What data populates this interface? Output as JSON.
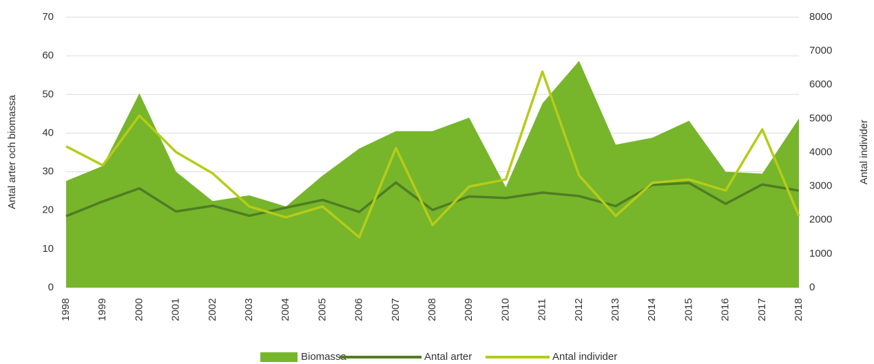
{
  "chart_data": {
    "type": "area_line",
    "categories": [
      "1998",
      "1999",
      "2000",
      "2001",
      "2002",
      "2003",
      "2004",
      "2005",
      "2006",
      "2007",
      "2008",
      "2009",
      "2010",
      "2011",
      "2012",
      "2013",
      "2014",
      "2015",
      "2016",
      "2017",
      "2018"
    ],
    "series": [
      {
        "name": "Biomassa",
        "color": "#77b52b",
        "type": "area",
        "values": [
          27.6,
          31.5,
          50.3,
          30,
          22.4,
          23.9,
          21,
          29,
          36,
          40.5,
          40.5,
          44,
          26,
          47.7,
          58.7,
          37,
          38.8,
          43.2,
          30,
          29.5,
          43.8
        ]
      },
      {
        "name": "Antal arter",
        "color": "#4f7d23",
        "type": "line",
        "values": [
          18.5,
          22.3,
          25.7,
          19.7,
          21.2,
          18.6,
          20.7,
          22.7,
          19.6,
          27.2,
          20.1,
          23.6,
          23.2,
          24.6,
          23.7,
          21.1,
          26.6,
          27.1,
          21.7,
          26.7,
          25.1
        ]
      },
      {
        "name": "Antal individer",
        "color": "#b5cc18",
        "type": "line",
        "axis": "y2",
        "values": [
          4180,
          3620,
          5090,
          4010,
          3380,
          2400,
          2080,
          2400,
          1490,
          4130,
          1850,
          2990,
          3200,
          6390,
          3320,
          2120,
          3100,
          3200,
          2870,
          4680,
          2120
        ]
      }
    ],
    "ylabel": "Antal arter och biomassa",
    "y2label": "Antal individer",
    "ylim": [
      0,
      70
    ],
    "yticks": [
      0,
      10,
      20,
      30,
      40,
      50,
      60,
      70
    ],
    "y2lim": [
      0,
      8000
    ],
    "y2ticks": [
      0,
      1000,
      2000,
      3000,
      4000,
      5000,
      6000,
      7000,
      8000
    ],
    "grid": true,
    "legend": "bottom"
  }
}
